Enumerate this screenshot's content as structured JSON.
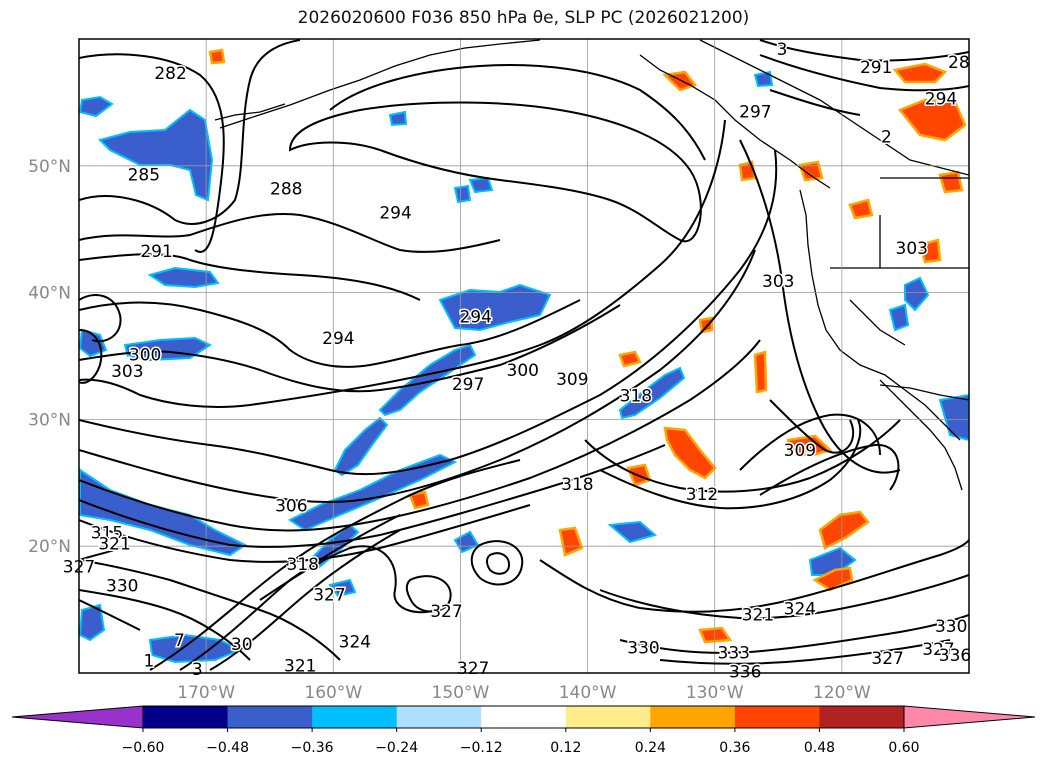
{
  "title": "2026020600 F036 850 hPa θe, SLP PC (2026021200)",
  "map": {
    "lon_range": [
      -180,
      -110
    ],
    "lat_range": [
      10,
      60
    ],
    "lat_ticks": [
      {
        "lat": 20,
        "label": "20°N"
      },
      {
        "lat": 30,
        "label": "30°N"
      },
      {
        "lat": 40,
        "label": "40°N"
      },
      {
        "lat": 50,
        "label": "50°N"
      }
    ],
    "lon_ticks": [
      {
        "lon": -170,
        "label": "170°W"
      },
      {
        "lon": -160,
        "label": "160°W"
      },
      {
        "lon": -150,
        "label": "150°W"
      },
      {
        "lon": -140,
        "label": "140°W"
      },
      {
        "lon": -130,
        "label": "130°W"
      },
      {
        "lon": -120,
        "label": "120°W"
      }
    ],
    "grid": true,
    "tick_label_color": "#888888"
  },
  "colorbar": {
    "bounds": [
      "−0.60",
      "−0.48",
      "−0.36",
      "−0.24",
      "−0.12",
      "0.12",
      "0.24",
      "0.36",
      "0.48",
      "0.60"
    ],
    "colors": [
      "#9932cc",
      "#00008b",
      "#3a5fcd",
      "#00bfff",
      "#afe0ff",
      "#ffffff",
      "#ffec8b",
      "#ffa500",
      "#ff4500",
      "#b22222",
      "#ff88aa"
    ],
    "extend": "both"
  },
  "contour_labels": [
    {
      "text": "282",
      "lon": -172.8,
      "lat": 57.3
    },
    {
      "text": "285",
      "lon": -174.9,
      "lat": 49.3
    },
    {
      "text": "288",
      "lon": -163.7,
      "lat": 48.2
    },
    {
      "text": "291",
      "lon": -173.9,
      "lat": 43.3
    },
    {
      "text": "294",
      "lon": -155.1,
      "lat": 46.3
    },
    {
      "text": "294",
      "lon": -159.6,
      "lat": 36.4
    },
    {
      "text": "294",
      "lon": -148.8,
      "lat": 38.1
    },
    {
      "text": "297",
      "lon": -149.4,
      "lat": 32.8
    },
    {
      "text": "300",
      "lon": -174.8,
      "lat": 35.1
    },
    {
      "text": "300",
      "lon": -145.1,
      "lat": 33.9
    },
    {
      "text": "303",
      "lon": -176.2,
      "lat": 33.8
    },
    {
      "text": "303",
      "lon": -125.0,
      "lat": 40.9
    },
    {
      "text": "303",
      "lon": -114.5,
      "lat": 43.5
    },
    {
      "text": "306",
      "lon": -163.3,
      "lat": 23.2
    },
    {
      "text": "309",
      "lon": -141.2,
      "lat": 33.2
    },
    {
      "text": "309",
      "lon": -123.3,
      "lat": 27.6
    },
    {
      "text": "312",
      "lon": -131.0,
      "lat": 24.1
    },
    {
      "text": "315",
      "lon": -177.8,
      "lat": 21.1
    },
    {
      "text": "318",
      "lon": -136.2,
      "lat": 31.9
    },
    {
      "text": "318",
      "lon": -140.8,
      "lat": 24.9
    },
    {
      "text": "318",
      "lon": -162.4,
      "lat": 18.6
    },
    {
      "text": "321",
      "lon": -177.2,
      "lat": 20.2
    },
    {
      "text": "321",
      "lon": -162.6,
      "lat": 10.6
    },
    {
      "text": "321",
      "lon": -126.6,
      "lat": 14.6
    },
    {
      "text": "324",
      "lon": -158.3,
      "lat": 12.5
    },
    {
      "text": "324",
      "lon": -123.3,
      "lat": 15.1
    },
    {
      "text": "327",
      "lon": -180.0,
      "lat": 18.4
    },
    {
      "text": "327",
      "lon": -160.3,
      "lat": 16.2
    },
    {
      "text": "327",
      "lon": -151.1,
      "lat": 14.9
    },
    {
      "text": "327",
      "lon": -149.0,
      "lat": 10.4
    },
    {
      "text": "327",
      "lon": -116.4,
      "lat": 11.2
    },
    {
      "text": "330",
      "lon": -176.6,
      "lat": 16.9
    },
    {
      "text": "330",
      "lon": -135.6,
      "lat": 12.0
    },
    {
      "text": "330",
      "lon": -111.4,
      "lat": 13.7
    },
    {
      "text": "333",
      "lon": -128.5,
      "lat": 11.6
    },
    {
      "text": "336",
      "lon": -127.6,
      "lat": 10.1
    },
    {
      "text": "291",
      "lon": -117.3,
      "lat": 57.8
    },
    {
      "text": "294",
      "lon": -112.2,
      "lat": 55.3
    },
    {
      "text": "297",
      "lon": -126.8,
      "lat": 54.3
    },
    {
      "text": "28",
      "lon": -110.8,
      "lat": 58.2
    },
    {
      "text": "3",
      "lon": -124.7,
      "lat": 59.2
    },
    {
      "text": "2",
      "lon": -116.5,
      "lat": 52.3
    },
    {
      "text": "3",
      "lon": -170.7,
      "lat": 10.3
    },
    {
      "text": "1",
      "lon": -174.5,
      "lat": 11.0
    },
    {
      "text": "7",
      "lon": -172.1,
      "lat": 12.6
    },
    {
      "text": "30",
      "lon": -167.2,
      "lat": 12.3
    },
    {
      "text": "327",
      "lon": -112.4,
      "lat": 11.9
    },
    {
      "text": "336",
      "lon": -111.1,
      "lat": 11.4
    }
  ]
}
